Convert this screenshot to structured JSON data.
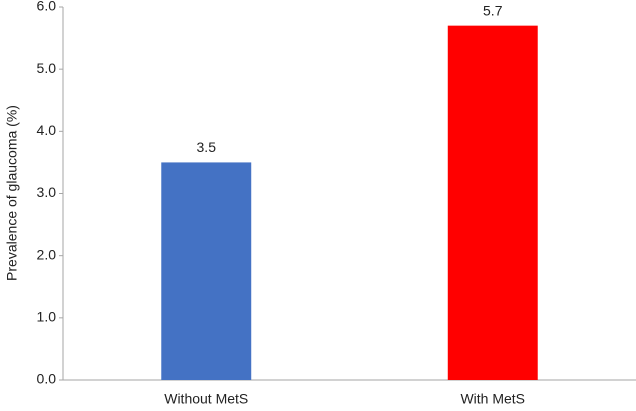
{
  "chart_data": {
    "type": "bar",
    "y_label": "Prevalence of glaucoma (%)",
    "categories": [
      "Without MetS",
      "With MetS"
    ],
    "values": [
      3.5,
      5.7
    ],
    "colors": [
      "#4472c4",
      "#ff0000"
    ],
    "ylim": [
      0,
      6
    ],
    "yticks": [
      {
        "value": 0,
        "label": "0.0"
      },
      {
        "value": 1,
        "label": "1.0"
      },
      {
        "value": 2,
        "label": "2.0"
      },
      {
        "value": 3,
        "label": "3.0"
      },
      {
        "value": 4,
        "label": "4.0"
      },
      {
        "value": 5,
        "label": "5.0"
      },
      {
        "value": 6,
        "label": "6.0"
      }
    ],
    "grid": false
  }
}
